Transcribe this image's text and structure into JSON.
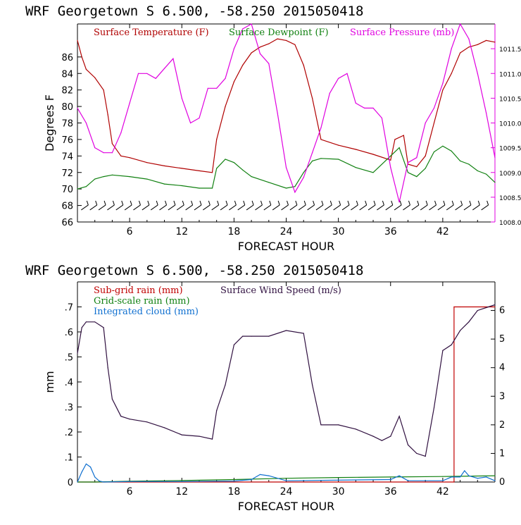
{
  "chart_data": [
    {
      "type": "line",
      "title": "WRF   Georgetown S   6.500, -58.250  2015050418",
      "xlabel": "FORECAST HOUR",
      "ylabel": "Degrees F",
      "xlim": [
        0,
        48
      ],
      "ylim": [
        66,
        90
      ],
      "y2lim": [
        1008.0,
        1012.0
      ],
      "x_ticks": [
        6,
        12,
        18,
        24,
        30,
        36,
        42
      ],
      "y_ticks": [
        66,
        68,
        70,
        72,
        74,
        76,
        78,
        80,
        82,
        84,
        86
      ],
      "y2_ticks": [
        "1008.0",
        "1008.5",
        "1009.0",
        "1009.5",
        "1010.0",
        "1010.5",
        "1011.0",
        "1011.5"
      ],
      "legend_position": "top",
      "colors": {
        "temp": "#b00000",
        "dew": "#108010",
        "pres": "#e000e0",
        "wind": "#000000"
      },
      "wind_barbs_note": "",
      "series": [
        {
          "name": "Surface Temperature (F)",
          "axis": "left",
          "color": "#b00000",
          "x": [
            0,
            0.5,
            1,
            2,
            3,
            3.5,
            4,
            5,
            6,
            8,
            10,
            12,
            14,
            15.5,
            16,
            17,
            18,
            19,
            20,
            21,
            22,
            23,
            24,
            25,
            26,
            27,
            28,
            30,
            32,
            34,
            36,
            36.5,
            37.5,
            38,
            39,
            40,
            41,
            42,
            43,
            44,
            45,
            46,
            47,
            48
          ],
          "y": [
            88,
            86,
            84.5,
            83.5,
            82,
            79,
            75.5,
            74,
            73.8,
            73.2,
            72.8,
            72.5,
            72.2,
            72,
            76,
            80,
            83,
            85,
            86.5,
            87.2,
            87.6,
            88.2,
            88,
            87.5,
            85,
            81,
            76,
            75.3,
            74.8,
            74.2,
            73.5,
            76,
            76.5,
            73,
            72.7,
            74,
            78,
            82,
            84,
            86.5,
            87.2,
            87.5,
            88,
            87.8
          ]
        },
        {
          "name": "Surface Dewpoint (F)",
          "axis": "left",
          "color": "#108010",
          "x": [
            0,
            1,
            2,
            3,
            4,
            6,
            8,
            10,
            12,
            14,
            15.5,
            16,
            17,
            18,
            19,
            20,
            22,
            24,
            25,
            26,
            27,
            28,
            30,
            32,
            34,
            36,
            37,
            38,
            39,
            40,
            41,
            42,
            43,
            44,
            45,
            46,
            47,
            48
          ],
          "y": [
            70,
            70.3,
            71.2,
            71.5,
            71.7,
            71.5,
            71.2,
            70.6,
            70.4,
            70.1,
            70.1,
            72.5,
            73.6,
            73.2,
            72.3,
            71.5,
            70.8,
            70.1,
            70.3,
            72,
            73.4,
            73.7,
            73.6,
            72.6,
            72,
            74,
            75,
            72,
            71.5,
            72.5,
            74.5,
            75.2,
            74.6,
            73.4,
            73,
            72.2,
            71.8,
            70.8
          ]
        },
        {
          "name": "Surface Pressure (mb)",
          "axis": "right",
          "color": "#e000e0",
          "x": [
            0,
            1,
            2,
            3,
            4,
            5,
            6,
            7,
            8,
            9,
            10,
            11,
            12,
            13,
            14,
            15,
            16,
            17,
            18,
            19,
            20,
            21,
            22,
            23,
            24,
            25,
            26,
            27,
            28,
            29,
            30,
            31,
            32,
            33,
            34,
            35,
            36,
            37,
            38,
            39,
            40,
            41,
            42,
            43,
            44,
            45,
            46,
            47,
            48
          ],
          "y": [
            1010.3,
            1010.0,
            1009.5,
            1009.4,
            1009.4,
            1009.8,
            1010.4,
            1011.0,
            1011.0,
            1010.9,
            1011.1,
            1011.3,
            1010.5,
            1010.0,
            1010.1,
            1010.7,
            1010.7,
            1010.9,
            1011.5,
            1011.9,
            1012.0,
            1011.4,
            1011.2,
            1010.2,
            1009.1,
            1008.6,
            1008.9,
            1009.4,
            1009.9,
            1010.6,
            1010.9,
            1011.0,
            1010.4,
            1010.3,
            1010.3,
            1010.1,
            1009.1,
            1008.4,
            1009.2,
            1009.3,
            1010.0,
            1010.3,
            1010.8,
            1011.5,
            1012.0,
            1011.7,
            1011.0,
            1010.2,
            1009.3
          ]
        }
      ]
    },
    {
      "type": "line",
      "title": "WRF   Georgetown S   6.500, -58.250  2015050418",
      "xlabel": "FORECAST HOUR",
      "ylabel": "mm",
      "xlim": [
        0,
        48
      ],
      "ylim": [
        0,
        0.8
      ],
      "y2lim": [
        0,
        7
      ],
      "x_ticks": [
        6,
        12,
        18,
        24,
        30,
        36,
        42
      ],
      "y_ticks": [
        "0",
        ".1",
        ".2",
        ".3",
        ".4",
        ".5",
        ".6",
        ".7"
      ],
      "y2_ticks": [
        "0",
        "1",
        "2",
        "3",
        "4",
        "5",
        "6"
      ],
      "legend_position": "top",
      "series": [
        {
          "name": "Sub-grid rain (mm)",
          "axis": "left",
          "color": "#c00000",
          "x": [
            0,
            43.3,
            43.3,
            44,
            48
          ],
          "y": [
            0,
            0,
            0.7,
            0.7,
            0.7
          ]
        },
        {
          "name": "Grid-scale rain (mm)",
          "axis": "left",
          "color": "#108010",
          "x": [
            0,
            2,
            6,
            12,
            18,
            24,
            30,
            36,
            42,
            48
          ],
          "y": [
            0.0,
            0.0,
            0.003,
            0.006,
            0.01,
            0.015,
            0.018,
            0.02,
            0.022,
            0.025
          ]
        },
        {
          "name": "Integrated cloud (mm)",
          "axis": "left",
          "color": "#1070d0",
          "x": [
            0,
            0.5,
            1,
            1.5,
            2,
            2.5,
            3,
            6,
            12,
            18,
            20,
            21,
            22,
            24,
            36,
            37,
            38,
            42,
            43,
            44,
            44.5,
            45,
            46,
            47,
            48
          ],
          "y": [
            0,
            0.04,
            0.072,
            0.06,
            0.02,
            0.004,
            0,
            0.002,
            0.002,
            0.004,
            0.01,
            0.03,
            0.025,
            0.005,
            0.01,
            0.025,
            0.005,
            0.005,
            0.02,
            0.02,
            0.045,
            0.025,
            0.015,
            0.02,
            0.005
          ]
        },
        {
          "name": "Surface Wind Speed (m/s)",
          "axis": "right",
          "color": "#301040",
          "x": [
            0,
            0.5,
            1,
            2,
            3,
            3.5,
            4,
            5,
            6,
            8,
            10,
            12,
            14,
            15.5,
            16,
            17,
            18,
            19,
            20,
            22,
            24,
            26,
            27,
            28,
            30,
            32,
            34,
            35,
            36,
            37,
            38,
            39,
            40,
            41,
            42,
            43,
            44,
            45,
            46,
            47,
            48
          ],
          "y": [
            4.5,
            5.4,
            5.6,
            5.6,
            5.4,
            4.0,
            2.9,
            2.3,
            2.2,
            2.1,
            1.9,
            1.65,
            1.6,
            1.5,
            2.5,
            3.4,
            4.8,
            5.1,
            5.1,
            5.1,
            5.3,
            5.2,
            3.4,
            2.0,
            2.0,
            1.85,
            1.6,
            1.45,
            1.6,
            2.3,
            1.3,
            1.0,
            0.9,
            2.6,
            4.6,
            4.8,
            5.3,
            5.6,
            6.0,
            6.1,
            6.2
          ]
        }
      ]
    }
  ]
}
